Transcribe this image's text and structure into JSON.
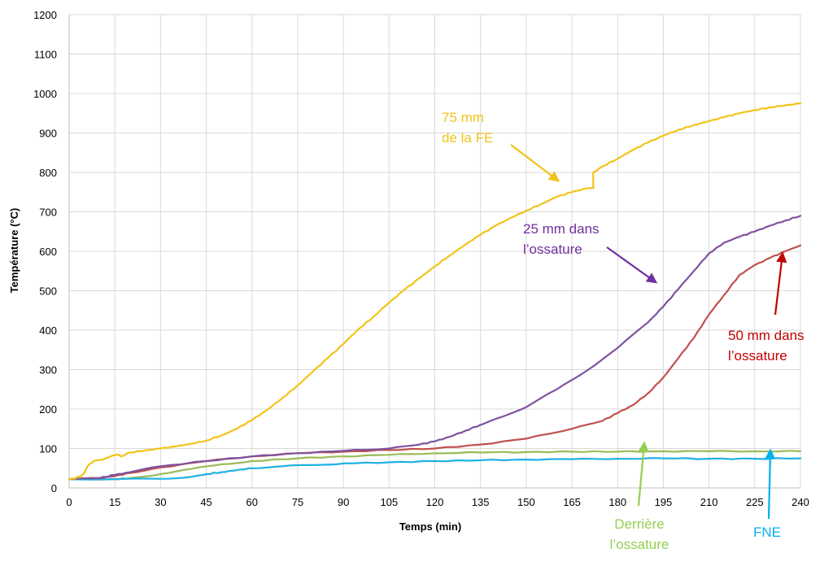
{
  "chart_data": {
    "type": "line",
    "title": "",
    "xlabel": "Temps (min)",
    "ylabel": "Température (°C)",
    "xlim": [
      0,
      240
    ],
    "ylim": [
      0,
      1200
    ],
    "xticks": [
      0,
      15,
      30,
      45,
      60,
      75,
      90,
      105,
      120,
      135,
      150,
      165,
      180,
      195,
      210,
      225,
      240
    ],
    "yticks": [
      0,
      100,
      200,
      300,
      400,
      500,
      600,
      700,
      800,
      900,
      1000,
      1100,
      1200
    ],
    "grid": true,
    "legend": "none",
    "series": [
      {
        "name": "75 mm de la FE",
        "color": "#f2c318",
        "x": [
          0,
          2,
          3,
          4,
          5,
          6,
          8,
          12,
          16,
          17,
          20,
          25,
          30,
          35,
          40,
          45,
          50,
          55,
          60,
          65,
          70,
          75,
          80,
          85,
          90,
          95,
          100,
          105,
          110,
          115,
          120,
          125,
          130,
          135,
          140,
          145,
          150,
          155,
          160,
          165,
          170,
          172,
          172,
          175,
          180,
          185,
          190,
          195,
          200,
          205,
          210,
          215,
          220,
          225,
          230,
          235,
          240
        ],
        "y": [
          22,
          25,
          28,
          30,
          38,
          55,
          68,
          75,
          85,
          80,
          90,
          95,
          100,
          105,
          112,
          120,
          133,
          150,
          172,
          198,
          228,
          260,
          295,
          330,
          365,
          403,
          435,
          470,
          502,
          532,
          562,
          590,
          617,
          642,
          665,
          685,
          703,
          720,
          738,
          750,
          760,
          760,
          800,
          815,
          835,
          857,
          876,
          893,
          908,
          920,
          930,
          940,
          950,
          958,
          965,
          970,
          975
        ]
      },
      {
        "name": "25 mm dans l’ossature",
        "color": "#7e52a0",
        "x": [
          0,
          10,
          15,
          20,
          30,
          45,
          60,
          75,
          90,
          105,
          115,
          120,
          125,
          130,
          135,
          140,
          150,
          160,
          170,
          180,
          190,
          195,
          200,
          205,
          210,
          215,
          220,
          225,
          230,
          235,
          240
        ],
        "y": [
          22,
          25,
          33,
          40,
          55,
          68,
          80,
          88,
          94,
          100,
          110,
          118,
          130,
          145,
          160,
          175,
          205,
          250,
          298,
          355,
          420,
          460,
          505,
          550,
          595,
          622,
          637,
          650,
          665,
          678,
          690
        ]
      },
      {
        "name": "50 mm dans l’ossature",
        "color": "#c0504d",
        "x": [
          0,
          10,
          15,
          20,
          30,
          45,
          60,
          75,
          90,
          105,
          120,
          135,
          150,
          165,
          175,
          180,
          185,
          190,
          195,
          200,
          205,
          210,
          215,
          220,
          225,
          230,
          235,
          240
        ],
        "y": [
          22,
          25,
          30,
          38,
          52,
          68,
          80,
          88,
          92,
          96,
          100,
          110,
          125,
          150,
          170,
          190,
          210,
          240,
          280,
          330,
          380,
          440,
          490,
          540,
          565,
          583,
          600,
          615
        ]
      },
      {
        "name": "Derrière l’ossature",
        "color": "#9bbb59",
        "x": [
          0,
          15,
          20,
          30,
          40,
          50,
          60,
          75,
          90,
          105,
          120,
          135,
          150,
          165,
          180,
          195,
          210,
          225,
          240
        ],
        "y": [
          22,
          22,
          25,
          35,
          48,
          60,
          68,
          75,
          80,
          84,
          88,
          90,
          91,
          92,
          92,
          93,
          93,
          93,
          93
        ]
      },
      {
        "name": "FNE",
        "color": "#1fb1e4",
        "x": [
          0,
          30,
          40,
          45,
          50,
          55,
          60,
          70,
          80,
          90,
          105,
          120,
          135,
          150,
          165,
          180,
          195,
          210,
          225,
          240
        ],
        "y": [
          22,
          23,
          28,
          35,
          40,
          45,
          50,
          55,
          58,
          62,
          65,
          68,
          70,
          72,
          73,
          74,
          75,
          74,
          74,
          75
        ]
      }
    ],
    "annotations": [
      {
        "key": "fe",
        "lines": [
          "75 mm",
          "de la FE"
        ],
        "color": "#f2c318"
      },
      {
        "key": "os25",
        "lines": [
          "25 mm dans",
          "l’ossature"
        ],
        "color": "#7030a0"
      },
      {
        "key": "os50",
        "lines": [
          "50 mm dans",
          "l’ossature"
        ],
        "color": "#c00000"
      },
      {
        "key": "derr",
        "lines": [
          "Derrière",
          "l’ossature"
        ],
        "color": "#92d050"
      },
      {
        "key": "fne",
        "lines": [
          "FNE"
        ],
        "color": "#00b0f0"
      }
    ]
  }
}
